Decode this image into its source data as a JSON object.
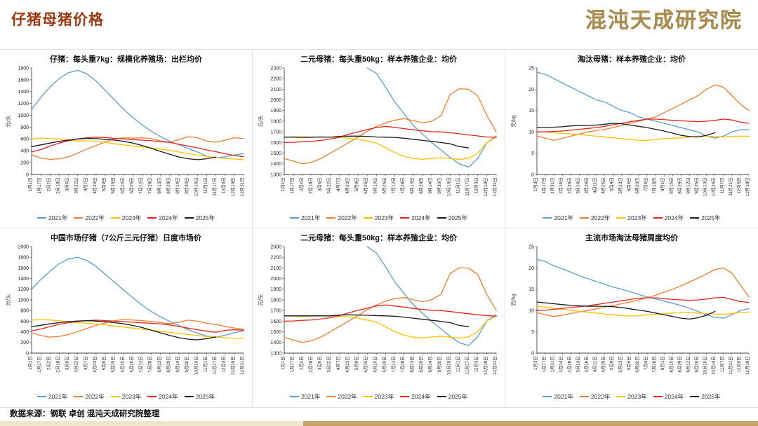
{
  "header": {
    "title": "仔猪母猪价格",
    "logo_text": "混沌天成研究院"
  },
  "footer": {
    "source_text": "数据来源：钢联 卓创 混沌天成研究院整理"
  },
  "series_colors": {
    "2021年": "#5B9BD5",
    "2022年": "#ED7D31",
    "2023年": "#FFC000",
    "2024年": "#E1251B",
    "2025年": "#1A1A1A"
  },
  "x_label_sets": {
    "daily": [
      "1月1日",
      "1月17日",
      "2月2日",
      "2月18日",
      "3月6日",
      "3月22日",
      "4月7日",
      "4月23日",
      "5月9日",
      "5月25日",
      "6月10日",
      "6月26日",
      "7月12日",
      "7月28日",
      "8月13日",
      "8月29日",
      "9月14日",
      "9月30日",
      "10月16日",
      "11月1日",
      "11月17日",
      "12月3日",
      "12月19日",
      "12月31日"
    ],
    "weekly": [
      "1月3日",
      "1月17日",
      "1月31日",
      "2月14日",
      "2月28日",
      "3月14日",
      "3月28日",
      "4月11日",
      "4月25日",
      "5月9日",
      "5月23日",
      "6月6日",
      "6月20日",
      "7月4日",
      "7月18日",
      "8月1日",
      "8月15日",
      "8月29日",
      "9月12日",
      "9月26日",
      "10月10日",
      "10月24日",
      "11月7日",
      "11月21日",
      "12月5日",
      "12月19日"
    ]
  },
  "chart_data": [
    {
      "type": "line",
      "title": "仔猪：每头重7kg：规模化养殖场：出栏均价",
      "ylabel": "元/头",
      "ylim": [
        0,
        1800
      ],
      "ytick": 200,
      "x_labels_ref": "daily",
      "legend_position": "bottom",
      "grid": false,
      "series": [
        {
          "name": "2021年",
          "values": [
            1100,
            1300,
            1480,
            1620,
            1720,
            1760,
            1700,
            1580,
            1420,
            1260,
            1100,
            960,
            840,
            730,
            640,
            560,
            500,
            440,
            380,
            310,
            280,
            300,
            330,
            350
          ]
        },
        {
          "name": "2022年",
          "values": [
            330,
            280,
            255,
            265,
            300,
            360,
            430,
            490,
            550,
            600,
            620,
            615,
            620,
            605,
            565,
            545,
            590,
            640,
            620,
            565,
            545,
            580,
            620,
            605
          ]
        },
        {
          "name": "2023年",
          "values": [
            600,
            615,
            610,
            600,
            585,
            565,
            570,
            560,
            540,
            520,
            500,
            480,
            465,
            450,
            430,
            405,
            380,
            350,
            330,
            305,
            285,
            270,
            260,
            250
          ]
        },
        {
          "name": "2024年",
          "values": [
            380,
            420,
            480,
            530,
            570,
            600,
            620,
            630,
            625,
            610,
            600,
            590,
            580,
            570,
            555,
            540,
            510,
            480,
            450,
            415,
            385,
            350,
            320,
            300
          ]
        },
        {
          "name": "2025年",
          "values": [
            470,
            500,
            530,
            560,
            580,
            600,
            610,
            605,
            595,
            580,
            560,
            530,
            490,
            440,
            390,
            340,
            295,
            265,
            250,
            265,
            295,
            null,
            null,
            null
          ]
        }
      ]
    },
    {
      "type": "line",
      "title": "二元母猪：每头重50kg：样本养殖企业：均价",
      "ylabel": "元/头",
      "ylim": [
        1300,
        2300
      ],
      "ytick": 100,
      "x_labels_ref": "daily",
      "legend_position": "bottom",
      "grid": false,
      "series": [
        {
          "name": "2021年",
          "values": [
            null,
            null,
            null,
            null,
            null,
            null,
            null,
            null,
            null,
            2300,
            2250,
            2120,
            1980,
            1870,
            1760,
            1680,
            1600,
            1530,
            1460,
            1400,
            1370,
            1450,
            1600,
            1660
          ]
        },
        {
          "name": "2022年",
          "values": [
            1450,
            1425,
            1400,
            1415,
            1450,
            1500,
            1550,
            1600,
            1650,
            1705,
            1750,
            1785,
            1810,
            1825,
            1805,
            1785,
            1800,
            1850,
            2050,
            2105,
            2100,
            2040,
            1850,
            1700
          ]
        },
        {
          "name": "2023年",
          "values": [
            1650,
            1648,
            1645,
            1650,
            1652,
            1650,
            1648,
            1640,
            1630,
            1615,
            1595,
            1550,
            1505,
            1470,
            1450,
            1442,
            1450,
            1458,
            1450,
            1442,
            1450,
            1500,
            1600,
            1650
          ]
        },
        {
          "name": "2024年",
          "values": [
            1600,
            1602,
            1608,
            1612,
            1620,
            1632,
            1650,
            1678,
            1700,
            1722,
            1740,
            1752,
            1742,
            1730,
            1720,
            1710,
            1702,
            1700,
            1692,
            1682,
            1672,
            1662,
            1652,
            1650
          ]
        },
        {
          "name": "2025年",
          "values": [
            1650,
            1652,
            1650,
            1650,
            1652,
            1650,
            1658,
            1660,
            1660,
            1658,
            1652,
            1650,
            1648,
            1640,
            1630,
            1620,
            1610,
            1600,
            1588,
            1562,
            1550,
            null,
            null,
            null
          ]
        }
      ]
    },
    {
      "type": "line",
      "title": "淘汰母猪：样本养殖企业：均价",
      "ylabel": "元/kg",
      "ylim": [
        0,
        25
      ],
      "ytick": 5,
      "x_labels_ref": "weekly",
      "legend_position": "bottom",
      "grid": false,
      "series": [
        {
          "name": "2021年",
          "values": [
            24,
            23.5,
            22.5,
            21.5,
            20.5,
            19.5,
            18.5,
            17.5,
            17,
            16,
            15,
            14.5,
            13.5,
            13,
            12.5,
            12,
            11.5,
            11,
            10.5,
            10,
            9,
            8.5,
            9,
            10,
            10.5,
            10.5
          ]
        },
        {
          "name": "2022年",
          "values": [
            9,
            8.5,
            8,
            8.5,
            9,
            9.5,
            10,
            10.3,
            10.6,
            11,
            11.5,
            12,
            12.5,
            13,
            13.5,
            14.5,
            15.5,
            16.5,
            17.5,
            18.5,
            20,
            21,
            20.5,
            18.5,
            16.5,
            15
          ]
        },
        {
          "name": "2023年",
          "values": [
            10,
            10,
            9.8,
            9.6,
            9.5,
            9.4,
            9.2,
            9,
            8.8,
            8.6,
            8.4,
            8.2,
            8,
            8,
            8.2,
            8.4,
            8.5,
            8.6,
            8.8,
            9,
            9,
            8.9,
            8.8,
            8.9,
            9,
            9
          ]
        },
        {
          "name": "2024年",
          "values": [
            10,
            10,
            10.1,
            10.2,
            10.4,
            10.6,
            10.8,
            11,
            11.3,
            11.7,
            12,
            12.4,
            12.7,
            13,
            13,
            12.9,
            12.7,
            12.6,
            12.5,
            12.4,
            12.5,
            12.7,
            13,
            12.8,
            12.3,
            12
          ]
        },
        {
          "name": "2025年",
          "values": [
            11,
            11,
            11.1,
            11.2,
            11.4,
            11.5,
            11.5,
            11.6,
            11.8,
            12,
            11.9,
            11.6,
            11.3,
            11,
            10.6,
            10.2,
            9.7,
            9.2,
            8.9,
            8.8,
            9.2,
            9.8,
            null,
            null,
            null,
            null
          ]
        }
      ]
    },
    {
      "type": "line",
      "title": "中国市场仔猪（7公斤三元仔猪）日度市场价",
      "ylabel": "元/头",
      "ylim": [
        0,
        2000
      ],
      "ytick": 200,
      "x_labels_ref": "daily",
      "legend_position": "bottom",
      "grid": false,
      "series": [
        {
          "name": "2021年",
          "values": [
            1200,
            1380,
            1540,
            1680,
            1770,
            1800,
            1740,
            1630,
            1480,
            1330,
            1180,
            1040,
            900,
            780,
            680,
            595,
            515,
            440,
            375,
            320,
            300,
            335,
            385,
            420
          ]
        },
        {
          "name": "2022年",
          "values": [
            380,
            330,
            300,
            315,
            350,
            405,
            465,
            520,
            570,
            610,
            630,
            622,
            610,
            598,
            572,
            550,
            582,
            620,
            600,
            560,
            538,
            502,
            472,
            450
          ]
        },
        {
          "name": "2023年",
          "values": [
            620,
            630,
            622,
            610,
            592,
            572,
            560,
            548,
            530,
            510,
            490,
            470,
            450,
            430,
            410,
            390,
            370,
            350,
            330,
            312,
            300,
            290,
            282,
            278
          ]
        },
        {
          "name": "2024年",
          "values": [
            420,
            452,
            500,
            540,
            572,
            592,
            610,
            620,
            612,
            600,
            590,
            580,
            570,
            560,
            548,
            530,
            500,
            470,
            440,
            412,
            392,
            428,
            440,
            430
          ]
        },
        {
          "name": "2025年",
          "values": [
            500,
            522,
            550,
            572,
            590,
            602,
            610,
            602,
            590,
            572,
            550,
            520,
            480,
            432,
            382,
            332,
            290,
            262,
            250,
            272,
            302,
            null,
            null,
            null
          ]
        }
      ]
    },
    {
      "type": "line",
      "title": "二元母猪：每头重50kg：样本养殖企业：均价",
      "ylabel": "元/头",
      "ylim": [
        1300,
        2300
      ],
      "ytick": 100,
      "x_labels_ref": "daily",
      "legend_position": "bottom",
      "grid": false,
      "series": [
        {
          "name": "2021年",
          "values": [
            null,
            null,
            null,
            null,
            null,
            null,
            null,
            null,
            null,
            2300,
            2240,
            2110,
            1970,
            1860,
            1755,
            1675,
            1598,
            1528,
            1458,
            1398,
            1372,
            1455,
            1605,
            1660
          ]
        },
        {
          "name": "2022年",
          "values": [
            1448,
            1422,
            1400,
            1418,
            1452,
            1502,
            1552,
            1602,
            1652,
            1708,
            1752,
            1788,
            1812,
            1822,
            1802,
            1782,
            1802,
            1852,
            2048,
            2102,
            2098,
            2038,
            1848,
            1700
          ]
        },
        {
          "name": "2023年",
          "values": [
            1650,
            1648,
            1645,
            1650,
            1650,
            1648,
            1646,
            1638,
            1628,
            1612,
            1592,
            1548,
            1502,
            1468,
            1450,
            1442,
            1452,
            1458,
            1450,
            1442,
            1452,
            1502,
            1602,
            1650
          ]
        },
        {
          "name": "2024年",
          "values": [
            1600,
            1602,
            1608,
            1612,
            1622,
            1632,
            1652,
            1678,
            1702,
            1722,
            1742,
            1752,
            1742,
            1732,
            1720,
            1710,
            1702,
            1700,
            1690,
            1680,
            1670,
            1660,
            1652,
            1648
          ]
        },
        {
          "name": "2025年",
          "values": [
            1650,
            1650,
            1650,
            1650,
            1650,
            1650,
            1658,
            1660,
            1658,
            1656,
            1652,
            1650,
            1646,
            1638,
            1628,
            1618,
            1608,
            1598,
            1586,
            1560,
            1548,
            null,
            null,
            null
          ]
        }
      ]
    },
    {
      "type": "line",
      "title": "主流市场淘汰母猪周度均价",
      "ylabel": "元/kg",
      "ylim": [
        0,
        25
      ],
      "ytick": 5,
      "x_labels_ref": "weekly",
      "legend_position": "bottom",
      "grid": false,
      "series": [
        {
          "name": "2021年",
          "values": [
            22,
            21.5,
            20.5,
            19.8,
            19,
            18.2,
            17.5,
            16.8,
            16.2,
            15.5,
            15,
            14.4,
            13.8,
            13.2,
            12.7,
            12.2,
            11.7,
            11.2,
            10.5,
            9.8,
            9,
            8.4,
            8.2,
            9,
            10,
            10.5
          ]
        },
        {
          "name": "2022年",
          "values": [
            9.5,
            9,
            8.6,
            8.9,
            9.3,
            9.7,
            10,
            10.4,
            10.8,
            11.2,
            11.6,
            12,
            12.5,
            13,
            13.6,
            14.3,
            15,
            15.8,
            16.7,
            17.6,
            18.6,
            19.6,
            20,
            18.8,
            16,
            13.2
          ]
        },
        {
          "name": "2023年",
          "values": [
            11,
            10.8,
            10.5,
            10.3,
            10,
            9.8,
            9.6,
            9.4,
            9.2,
            9,
            8.8,
            8.7,
            8.8,
            9,
            9.1,
            9.3,
            9.4,
            9.5,
            9.5,
            9.4,
            9.3,
            9.2,
            9.1,
            9.3,
            9.6,
            9.6
          ]
        },
        {
          "name": "2024年",
          "values": [
            10,
            10.1,
            10.3,
            10.5,
            10.7,
            10.9,
            11.1,
            11.4,
            11.7,
            12,
            12.3,
            12.6,
            12.9,
            13,
            13,
            12.8,
            12.6,
            12.5,
            12.4,
            12.5,
            12.7,
            13,
            13.1,
            12.6,
            12.1,
            11.9
          ]
        },
        {
          "name": "2025年",
          "values": [
            12,
            11.8,
            11.6,
            11.4,
            11.2,
            11.1,
            11,
            11,
            11,
            10.9,
            10.7,
            10.4,
            10.1,
            9.8,
            9.4,
            9,
            8.6,
            8.2,
            8,
            8.3,
            8.9,
            9.8,
            null,
            null,
            null,
            null
          ]
        }
      ]
    }
  ]
}
